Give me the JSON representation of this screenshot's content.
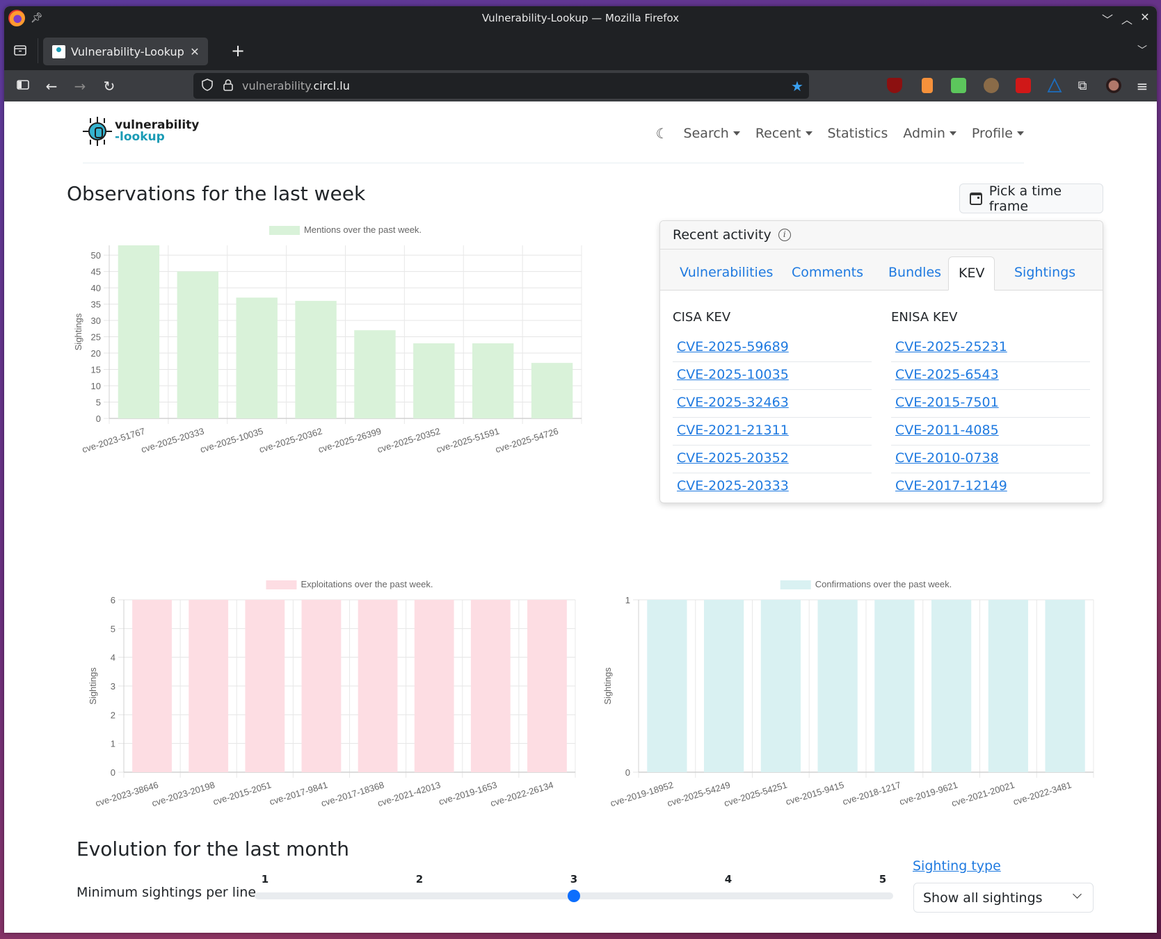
{
  "browser": {
    "window_title": "Vulnerability-Lookup — Mozilla Firefox",
    "tab_title": "Vulnerability-Lookup",
    "url_host_prefix": "vulnerability.",
    "url_host_domain": "circl.lu",
    "extensions": [
      {
        "name": "ublock-origin",
        "color": "#8c1010"
      },
      {
        "name": "trash-extension",
        "color": "#f5913b"
      },
      {
        "name": "green-sheet-extension",
        "color": "#5cc65c"
      },
      {
        "name": "badger-extension",
        "color": "#8a6b48"
      },
      {
        "name": "magic-wand-extension",
        "color": "#d01818"
      },
      {
        "name": "triangle-extension",
        "color": "#1d6dbd"
      }
    ]
  },
  "site": {
    "logo_line1": "vulnerability",
    "logo_line2": "-lookup",
    "nav": {
      "search": "Search",
      "recent": "Recent",
      "statistics": "Statistics",
      "admin": "Admin",
      "profile": "Profile"
    }
  },
  "main": {
    "title": "Observations for the last week",
    "pick_timeframe": "Pick a time frame"
  },
  "recent_activity": {
    "title": "Recent activity",
    "tabs": [
      {
        "label": "Vulnerabilities",
        "active": false
      },
      {
        "label": "Comments",
        "active": false
      },
      {
        "label": "Bundles",
        "active": false
      },
      {
        "label": "KEV",
        "active": true
      },
      {
        "label": "Sightings",
        "active": false
      }
    ],
    "cisa_kev": {
      "title": "CISA KEV",
      "items": [
        "CVE-2025-59689",
        "CVE-2025-10035",
        "CVE-2025-32463",
        "CVE-2021-21311",
        "CVE-2025-20352",
        "CVE-2025-20333"
      ]
    },
    "enisa_kev": {
      "title": "ENISA KEV",
      "items": [
        "CVE-2025-25231",
        "CVE-2025-6543",
        "CVE-2015-7501",
        "CVE-2011-4085",
        "CVE-2010-0738",
        "CVE-2017-12149"
      ]
    }
  },
  "evolution": {
    "title": "Evolution for the last month",
    "slider_label": "Minimum sightings per line",
    "slider_ticks": [
      "1",
      "2",
      "3",
      "4",
      "5"
    ],
    "slider_value": 3,
    "slider_min": 1,
    "slider_max": 5,
    "sighting_type_label": "Sighting type",
    "sighting_type_value": "Show all sightings"
  },
  "chart_data": [
    {
      "type": "bar",
      "title": "",
      "legend": "Mentions over the past week.",
      "legend_position": "top",
      "color": "#d9f2d9",
      "xlabel": "",
      "ylabel": "Sightings",
      "ylim": [
        0,
        53
      ],
      "yticks": [
        0,
        5,
        10,
        15,
        20,
        25,
        30,
        35,
        40,
        45,
        50
      ],
      "grid": true,
      "categories": [
        "cve-2023-51767",
        "cve-2025-20333",
        "cve-2025-10035",
        "cve-2025-20362",
        "cve-2025-26399",
        "cve-2025-20352",
        "cve-2025-51591",
        "cve-2025-54726"
      ],
      "values": [
        53,
        45,
        37,
        36,
        27,
        23,
        23,
        17
      ]
    },
    {
      "type": "bar",
      "title": "",
      "legend": "Exploitations over the past week.",
      "legend_position": "top",
      "color": "#fddde3",
      "xlabel": "",
      "ylabel": "Sightings",
      "ylim": [
        0,
        6
      ],
      "yticks": [
        0,
        1,
        2,
        3,
        4,
        5,
        6
      ],
      "grid": true,
      "categories": [
        "cve-2023-38646",
        "cve-2023-20198",
        "cve-2015-2051",
        "cve-2017-9841",
        "cve-2017-18368",
        "cve-2021-42013",
        "cve-2019-1653",
        "cve-2022-26134"
      ],
      "values": [
        6,
        6,
        6,
        6,
        6,
        6,
        6,
        6
      ]
    },
    {
      "type": "bar",
      "title": "",
      "legend": "Confirmations over the past week.",
      "legend_position": "top",
      "color": "#d9f1f2",
      "xlabel": "",
      "ylabel": "Sightings",
      "ylim": [
        0,
        1
      ],
      "yticks": [
        0,
        1
      ],
      "grid": true,
      "categories": [
        "cve-2019-18952",
        "cve-2025-54249",
        "cve-2025-54251",
        "cve-2015-9415",
        "cve-2018-1217",
        "cve-2019-9621",
        "cve-2021-20021",
        "cve-2022-3481"
      ],
      "values": [
        1,
        1,
        1,
        1,
        1,
        1,
        1,
        1
      ]
    }
  ]
}
